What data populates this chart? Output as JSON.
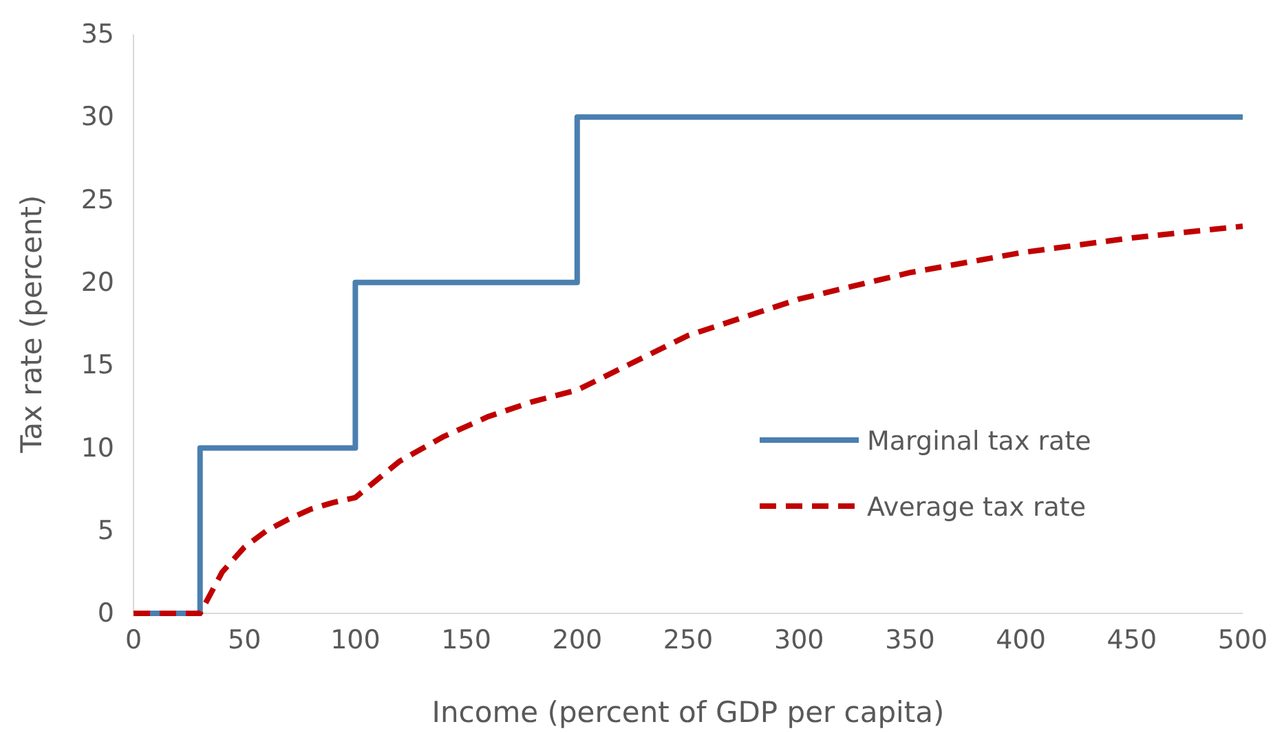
{
  "chart_data": {
    "type": "line",
    "xlabel": "Income (percent of GDP per capita)",
    "ylabel": "Tax rate (percent)",
    "xlim": [
      0,
      500
    ],
    "xticks": [
      0,
      50,
      100,
      150,
      200,
      250,
      300,
      350,
      400,
      450,
      500
    ],
    "ylim": [
      0,
      35
    ],
    "yticks": [
      0,
      5,
      10,
      15,
      20,
      25,
      30,
      35
    ],
    "grid": false,
    "legend": "right",
    "series": [
      {
        "name": "Marginal tax rate",
        "type": "step",
        "color": "#4a7fb0",
        "line_style": "solid",
        "x": [
          0,
          30,
          100,
          200,
          500
        ],
        "values": [
          0,
          10,
          20,
          30,
          30
        ]
      },
      {
        "name": "Average tax rate",
        "type": "line",
        "color": "#c00000",
        "line_style": "dashed",
        "x": [
          0,
          30,
          40,
          50,
          60,
          70,
          80,
          90,
          100,
          120,
          140,
          160,
          180,
          200,
          250,
          300,
          350,
          400,
          450,
          500
        ],
        "values": [
          0,
          0,
          2.5,
          4,
          5,
          5.7,
          6.3,
          6.7,
          7,
          9.2,
          10.7,
          11.9,
          12.8,
          13.5,
          16.8,
          19,
          20.6,
          21.8,
          22.7,
          23.4
        ]
      }
    ]
  }
}
